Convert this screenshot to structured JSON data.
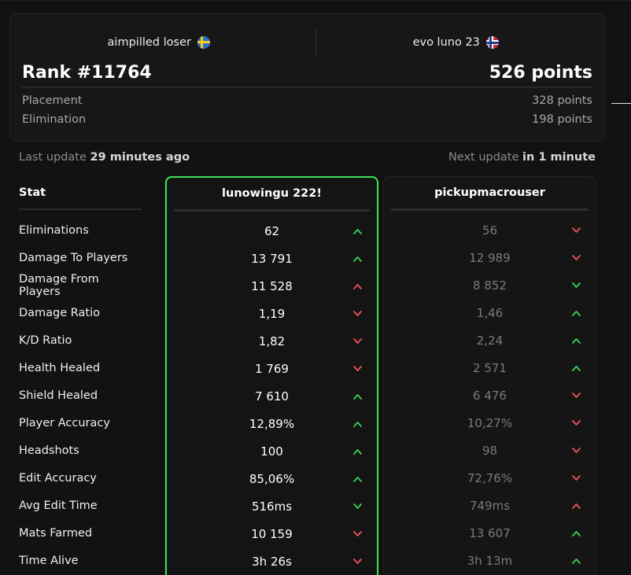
{
  "team": {
    "player1": {
      "name": "aimpilled loser",
      "flag": "sweden-flag-icon"
    },
    "player2": {
      "name": "evo luno 23",
      "flag": "norway-flag-icon"
    },
    "rank": "Rank #11764",
    "points": "526 points",
    "placement_label": "Placement",
    "placement_value": "328 points",
    "elimination_label": "Elimination",
    "elimination_value": "198 points"
  },
  "update": {
    "last_prefix": "Last update",
    "last_value": "29 minutes ago",
    "next_prefix": "Next update",
    "next_value": "in 1 minute"
  },
  "stats": {
    "header": "Stat",
    "player_a": "lunowingu 222!",
    "player_b": "pickupmacrouser",
    "rows": [
      {
        "label": "Eliminations",
        "a": "62",
        "a_dir": "up",
        "a_good": true,
        "b": "56",
        "b_dir": "down",
        "b_good": false
      },
      {
        "label": "Damage To Players",
        "a": "13 791",
        "a_dir": "up",
        "a_good": true,
        "b": "12 989",
        "b_dir": "down",
        "b_good": false
      },
      {
        "label": "Damage From Players",
        "a": "11 528",
        "a_dir": "up",
        "a_good": false,
        "b": "8 852",
        "b_dir": "down",
        "b_good": true
      },
      {
        "label": "Damage Ratio",
        "a": "1,19",
        "a_dir": "down",
        "a_good": false,
        "b": "1,46",
        "b_dir": "up",
        "b_good": true
      },
      {
        "label": "K/D Ratio",
        "a": "1,82",
        "a_dir": "down",
        "a_good": false,
        "b": "2,24",
        "b_dir": "up",
        "b_good": true
      },
      {
        "label": "Health Healed",
        "a": "1 769",
        "a_dir": "down",
        "a_good": false,
        "b": "2 571",
        "b_dir": "up",
        "b_good": true
      },
      {
        "label": "Shield Healed",
        "a": "7 610",
        "a_dir": "up",
        "a_good": true,
        "b": "6 476",
        "b_dir": "down",
        "b_good": false
      },
      {
        "label": "Player Accuracy",
        "a": "12,89%",
        "a_dir": "up",
        "a_good": true,
        "b": "10,27%",
        "b_dir": "down",
        "b_good": false
      },
      {
        "label": "Headshots",
        "a": "100",
        "a_dir": "up",
        "a_good": true,
        "b": "98",
        "b_dir": "down",
        "b_good": false
      },
      {
        "label": "Edit Accuracy",
        "a": "85,06%",
        "a_dir": "up",
        "a_good": true,
        "b": "72,76%",
        "b_dir": "down",
        "b_good": false
      },
      {
        "label": "Avg Edit Time",
        "a": "516ms",
        "a_dir": "down",
        "a_good": true,
        "b": "749ms",
        "b_dir": "up",
        "b_good": false
      },
      {
        "label": "Mats Farmed",
        "a": "10 159",
        "a_dir": "down",
        "a_good": false,
        "b": "13 607",
        "b_dir": "up",
        "b_good": true
      },
      {
        "label": "Time Alive",
        "a": "3h 26s",
        "a_dir": "down",
        "a_good": false,
        "b": "3h 13m",
        "b_dir": "up",
        "b_good": true
      }
    ]
  },
  "colors": {
    "good": "#33d35a",
    "bad": "#ef5258",
    "highlight_border": "#3ae45c"
  }
}
